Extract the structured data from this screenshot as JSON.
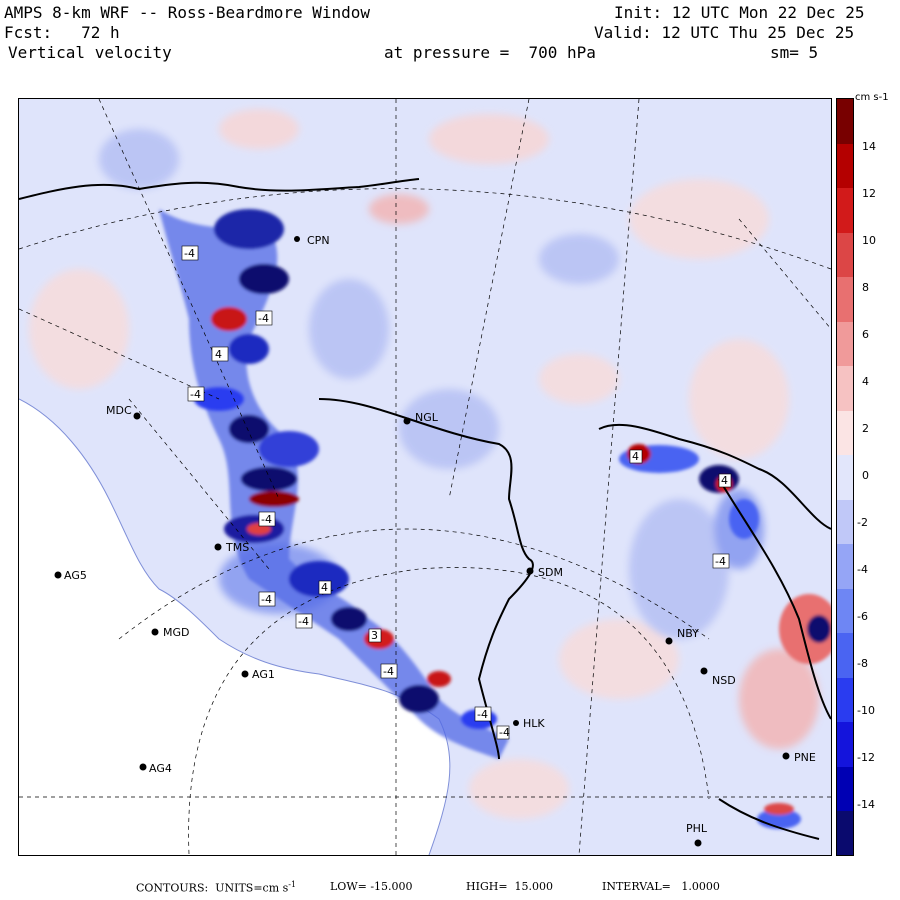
{
  "header": {
    "title": "AMPS 8-km WRF -- Ross-Beardmore Window",
    "forecast": "Fcst:   72 h",
    "field": "Vertical velocity",
    "init": "Init: 12 UTC Mon 22 Dec 25",
    "valid": "Valid: 12 UTC Thu 25 Dec 25",
    "pressure": "at pressure =  700 hPa",
    "smoothing": "sm= 5"
  },
  "colorbar": {
    "unit": "cm s-1",
    "labels": [
      "14",
      "12",
      "10",
      "8",
      "6",
      "4",
      "2",
      "0",
      "-2",
      "-4",
      "-6",
      "-8",
      "-10",
      "-12",
      "-14"
    ],
    "colors": [
      "#0a0a6e",
      "#0000b4",
      "#1414dc",
      "#2a3cf0",
      "#4a64f2",
      "#6e86f4",
      "#95a5f6",
      "#c0c8f8",
      "#e2e6fb",
      "#fbe4e4",
      "#f6c2c2",
      "#f09a9a",
      "#e87070",
      "#dc4646",
      "#d21a1a",
      "#b40000",
      "#780000"
    ]
  },
  "stations": [
    {
      "code": "CPN"
    },
    {
      "code": "MDC"
    },
    {
      "code": "NGL"
    },
    {
      "code": "TMS"
    },
    {
      "code": "AG5"
    },
    {
      "code": "SDM"
    },
    {
      "code": "MGD"
    },
    {
      "code": "AG1"
    },
    {
      "code": "NBY"
    },
    {
      "code": "NSD"
    },
    {
      "code": "AG4"
    },
    {
      "code": "HLK"
    },
    {
      "code": "PNE"
    },
    {
      "code": "PHL"
    }
  ],
  "contour_labels": [
    "-4",
    "-4",
    "4",
    "-4",
    "-4",
    "-4",
    "-4",
    "4",
    "3",
    "-4",
    "-4",
    "-4",
    "4",
    "-4",
    "4"
  ],
  "footer": {
    "contours": "CONTOURS:  UNITS=cm s",
    "unit_sup": "-1",
    "low": "LOW= -15.000",
    "high": "HIGH=  15.000",
    "interval": "INTERVAL=   1.0000"
  }
}
